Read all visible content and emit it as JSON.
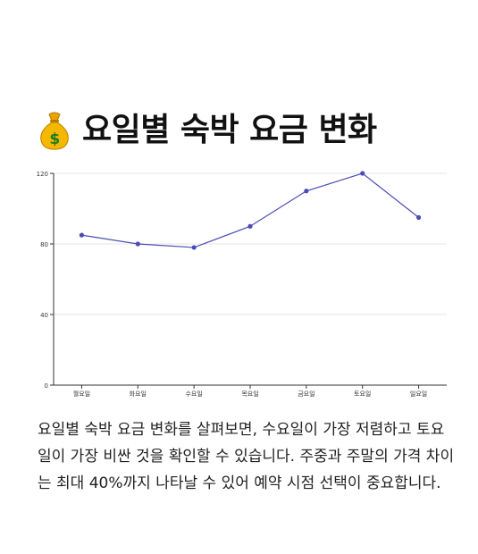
{
  "title": {
    "icon": "money-bag-icon",
    "text": "요일별 숙박 요금 변화"
  },
  "chart_data": {
    "type": "line",
    "categories": [
      "월요일",
      "화요일",
      "수요일",
      "목요일",
      "금요일",
      "토요일",
      "일요일"
    ],
    "series": [
      {
        "values": [
          85,
          80,
          78,
          90,
          110,
          120,
          95
        ],
        "color": "#4b4cb5"
      }
    ],
    "yticks": [
      "0",
      "40",
      "80",
      "120"
    ],
    "ylim": [
      0,
      120
    ],
    "grid": true,
    "legend": "none",
    "title": "",
    "xlabel": "",
    "ylabel": ""
  },
  "description": "요일별 숙박 요금 변화를 살펴보면, 수요일이 가장 저렴하고 토요일이 가장 비싼 것을 확인할 수 있습니다. 주중과 주말의 가격 차이는 최대 40%까지 나타날 수 있어 예약 시점 선택이 중요합니다."
}
